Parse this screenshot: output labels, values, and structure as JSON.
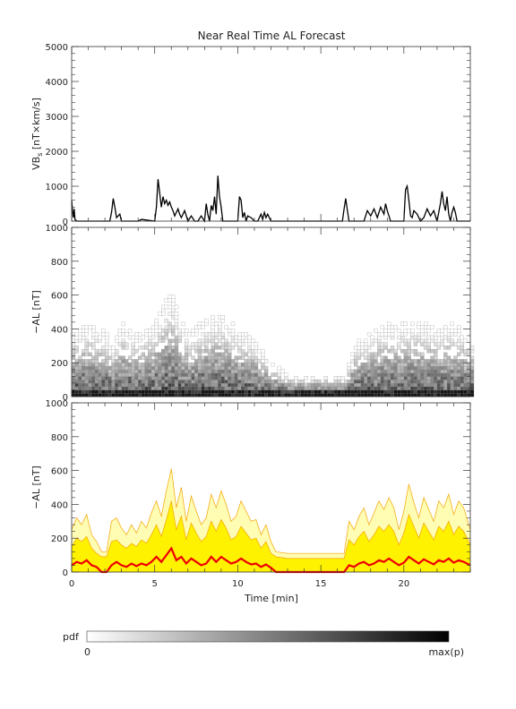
{
  "figure": {
    "title": "Near Real Time AL Forecast",
    "x_axis_label": "Time [min]",
    "colorbar": {
      "label": "pdf",
      "min_label": "0",
      "max_label": "max(p)"
    }
  },
  "colors": {
    "line": "#000000",
    "band_outer": "#fffcb4",
    "band_inner": "#fff200",
    "band_edge": "#f5a400",
    "median": "#ee0000"
  },
  "chart_data": [
    {
      "type": "line",
      "name": "vbs-panel",
      "ylabel_main": "VB",
      "ylabel_sub": "s",
      "ylabel_rest": " [nT×km/s]",
      "ylim": [
        0,
        5000
      ],
      "xlim": [
        0,
        24
      ],
      "yticks": [
        0,
        1000,
        2000,
        3000,
        4000,
        5000
      ],
      "xticks": [
        0,
        5,
        10,
        15,
        20
      ],
      "series": [
        {
          "x": [
            0,
            0.05,
            0.1,
            0.15,
            0.2,
            0.3,
            2.3,
            2.4,
            2.5,
            2.6,
            2.7,
            2.9,
            3.0,
            3.2,
            4.0,
            4.2,
            5.0,
            5.1,
            5.2,
            5.3,
            5.4,
            5.5,
            5.6,
            5.7,
            5.8,
            5.9,
            6.0,
            6.1,
            6.2,
            6.4,
            6.5,
            6.6,
            6.8,
            7.0,
            7.2,
            7.4,
            7.6,
            7.8,
            8.0,
            8.1,
            8.2,
            8.3,
            8.4,
            8.5,
            8.6,
            8.7,
            8.8,
            8.9,
            9.0,
            9.1,
            9.2,
            9.4,
            9.6,
            9.8,
            10.0,
            10.1,
            10.2,
            10.3,
            10.4,
            10.5,
            10.6,
            10.8,
            11.0,
            11.2,
            11.4,
            11.5,
            11.6,
            11.7,
            11.8,
            12.0,
            16.3,
            16.4,
            16.5,
            16.6,
            16.7,
            17.6,
            17.8,
            18.0,
            18.2,
            18.4,
            18.6,
            18.8,
            18.9,
            19.0,
            19.2,
            20.0,
            20.1,
            20.2,
            20.3,
            20.4,
            20.5,
            20.6,
            20.8,
            21.0,
            21.2,
            21.4,
            21.6,
            21.8,
            22.0,
            22.2,
            22.3,
            22.4,
            22.5,
            22.6,
            22.7,
            22.8,
            22.9,
            23.0,
            23.1,
            23.2,
            23.3,
            23.4,
            24
          ],
          "y": [
            600,
            300,
            100,
            350,
            50,
            0,
            0,
            250,
            650,
            400,
            100,
            200,
            0,
            0,
            0,
            50,
            0,
            400,
            1200,
            800,
            400,
            700,
            500,
            600,
            450,
            550,
            400,
            300,
            150,
            350,
            200,
            100,
            300,
            0,
            150,
            0,
            0,
            150,
            0,
            500,
            200,
            0,
            450,
            300,
            700,
            200,
            1300,
            700,
            400,
            0,
            0,
            0,
            0,
            0,
            0,
            700,
            600,
            100,
            250,
            0,
            150,
            100,
            0,
            0,
            200,
            50,
            250,
            100,
            200,
            0,
            0,
            350,
            650,
            300,
            0,
            0,
            300,
            150,
            350,
            100,
            400,
            200,
            500,
            300,
            0,
            0,
            900,
            1000,
            600,
            150,
            100,
            300,
            200,
            0,
            100,
            350,
            150,
            300,
            0,
            500,
            850,
            500,
            300,
            700,
            200,
            0,
            250,
            400,
            250,
            0,
            0,
            0,
            0
          ]
        }
      ]
    },
    {
      "type": "heatmap",
      "name": "al-pdf-panel",
      "ylabel": "−AL [nT]",
      "ylim": [
        0,
        1000
      ],
      "xlim": [
        0,
        24
      ],
      "yticks": [
        0,
        200,
        400,
        600,
        800,
        1000
      ],
      "xticks": [
        0,
        5,
        10,
        15,
        20
      ],
      "bin_width_min": 0.2,
      "bin_height_nT": 20,
      "columns_note": "each column: [time_min, upper extent of p90 (nT), density scale 0-1]",
      "upper_envelope": {
        "x": [
          0,
          1,
          2,
          2.5,
          3,
          4,
          5,
          5.5,
          6,
          6.5,
          7,
          8,
          9,
          10,
          11,
          12,
          13,
          16.5,
          17,
          18,
          19,
          20,
          21,
          22,
          23,
          24
        ],
        "y": [
          380,
          420,
          380,
          300,
          440,
          360,
          420,
          520,
          620,
          460,
          380,
          440,
          480,
          400,
          340,
          200,
          120,
          120,
          300,
          380,
          420,
          430,
          440,
          400,
          440,
          340
        ]
      }
    },
    {
      "type": "area",
      "name": "al-band-panel",
      "ylabel": "−AL [nT]",
      "ylim": [
        0,
        1000
      ],
      "xlim": [
        0,
        24
      ],
      "yticks": [
        0,
        200,
        400,
        600,
        800,
        1000
      ],
      "xticks": [
        0,
        5,
        10,
        15,
        20
      ],
      "x": [
        0,
        0.3,
        0.6,
        0.9,
        1.2,
        1.5,
        1.8,
        2.1,
        2.4,
        2.7,
        3.0,
        3.3,
        3.6,
        3.9,
        4.2,
        4.5,
        4.8,
        5.1,
        5.4,
        5.7,
        6.0,
        6.3,
        6.6,
        6.9,
        7.2,
        7.5,
        7.8,
        8.1,
        8.4,
        8.7,
        9.0,
        9.3,
        9.6,
        9.9,
        10.2,
        10.5,
        10.8,
        11.1,
        11.4,
        11.7,
        12.0,
        12.3,
        13.0,
        16.4,
        16.7,
        17.0,
        17.3,
        17.6,
        17.9,
        18.2,
        18.5,
        18.8,
        19.1,
        19.4,
        19.7,
        20.0,
        20.3,
        20.6,
        20.9,
        21.2,
        21.5,
        21.8,
        22.1,
        22.4,
        22.7,
        23.0,
        23.3,
        23.6,
        24.0
      ],
      "series": [
        {
          "name": "upper-outer",
          "values": [
            250,
            320,
            280,
            340,
            220,
            180,
            120,
            120,
            300,
            320,
            260,
            220,
            280,
            230,
            300,
            260,
            350,
            420,
            330,
            480,
            610,
            380,
            500,
            300,
            450,
            360,
            280,
            320,
            460,
            380,
            480,
            400,
            300,
            330,
            420,
            360,
            300,
            310,
            220,
            280,
            180,
            120,
            110,
            110,
            300,
            250,
            330,
            380,
            280,
            350,
            420,
            370,
            440,
            380,
            250,
            360,
            520,
            410,
            320,
            440,
            370,
            300,
            420,
            380,
            460,
            340,
            420,
            380,
            250
          ]
        },
        {
          "name": "upper-inner",
          "values": [
            150,
            200,
            180,
            210,
            140,
            110,
            90,
            90,
            180,
            190,
            160,
            140,
            170,
            150,
            190,
            170,
            220,
            280,
            210,
            310,
            420,
            250,
            330,
            190,
            290,
            230,
            180,
            210,
            300,
            240,
            310,
            260,
            190,
            210,
            270,
            230,
            190,
            200,
            140,
            180,
            110,
            90,
            80,
            80,
            190,
            160,
            210,
            240,
            180,
            220,
            270,
            240,
            280,
            240,
            160,
            230,
            340,
            270,
            200,
            290,
            240,
            190,
            270,
            240,
            300,
            220,
            270,
            240,
            160
          ]
        },
        {
          "name": "median",
          "values": [
            40,
            60,
            50,
            70,
            40,
            30,
            0,
            0,
            40,
            60,
            40,
            30,
            50,
            35,
            50,
            40,
            60,
            90,
            60,
            100,
            140,
            70,
            90,
            50,
            80,
            60,
            40,
            50,
            90,
            60,
            90,
            70,
            50,
            60,
            80,
            60,
            45,
            50,
            30,
            45,
            25,
            0,
            0,
            0,
            40,
            30,
            50,
            60,
            40,
            50,
            70,
            60,
            80,
            60,
            40,
            55,
            90,
            70,
            50,
            75,
            60,
            45,
            70,
            60,
            80,
            55,
            70,
            60,
            40
          ]
        }
      ]
    }
  ]
}
